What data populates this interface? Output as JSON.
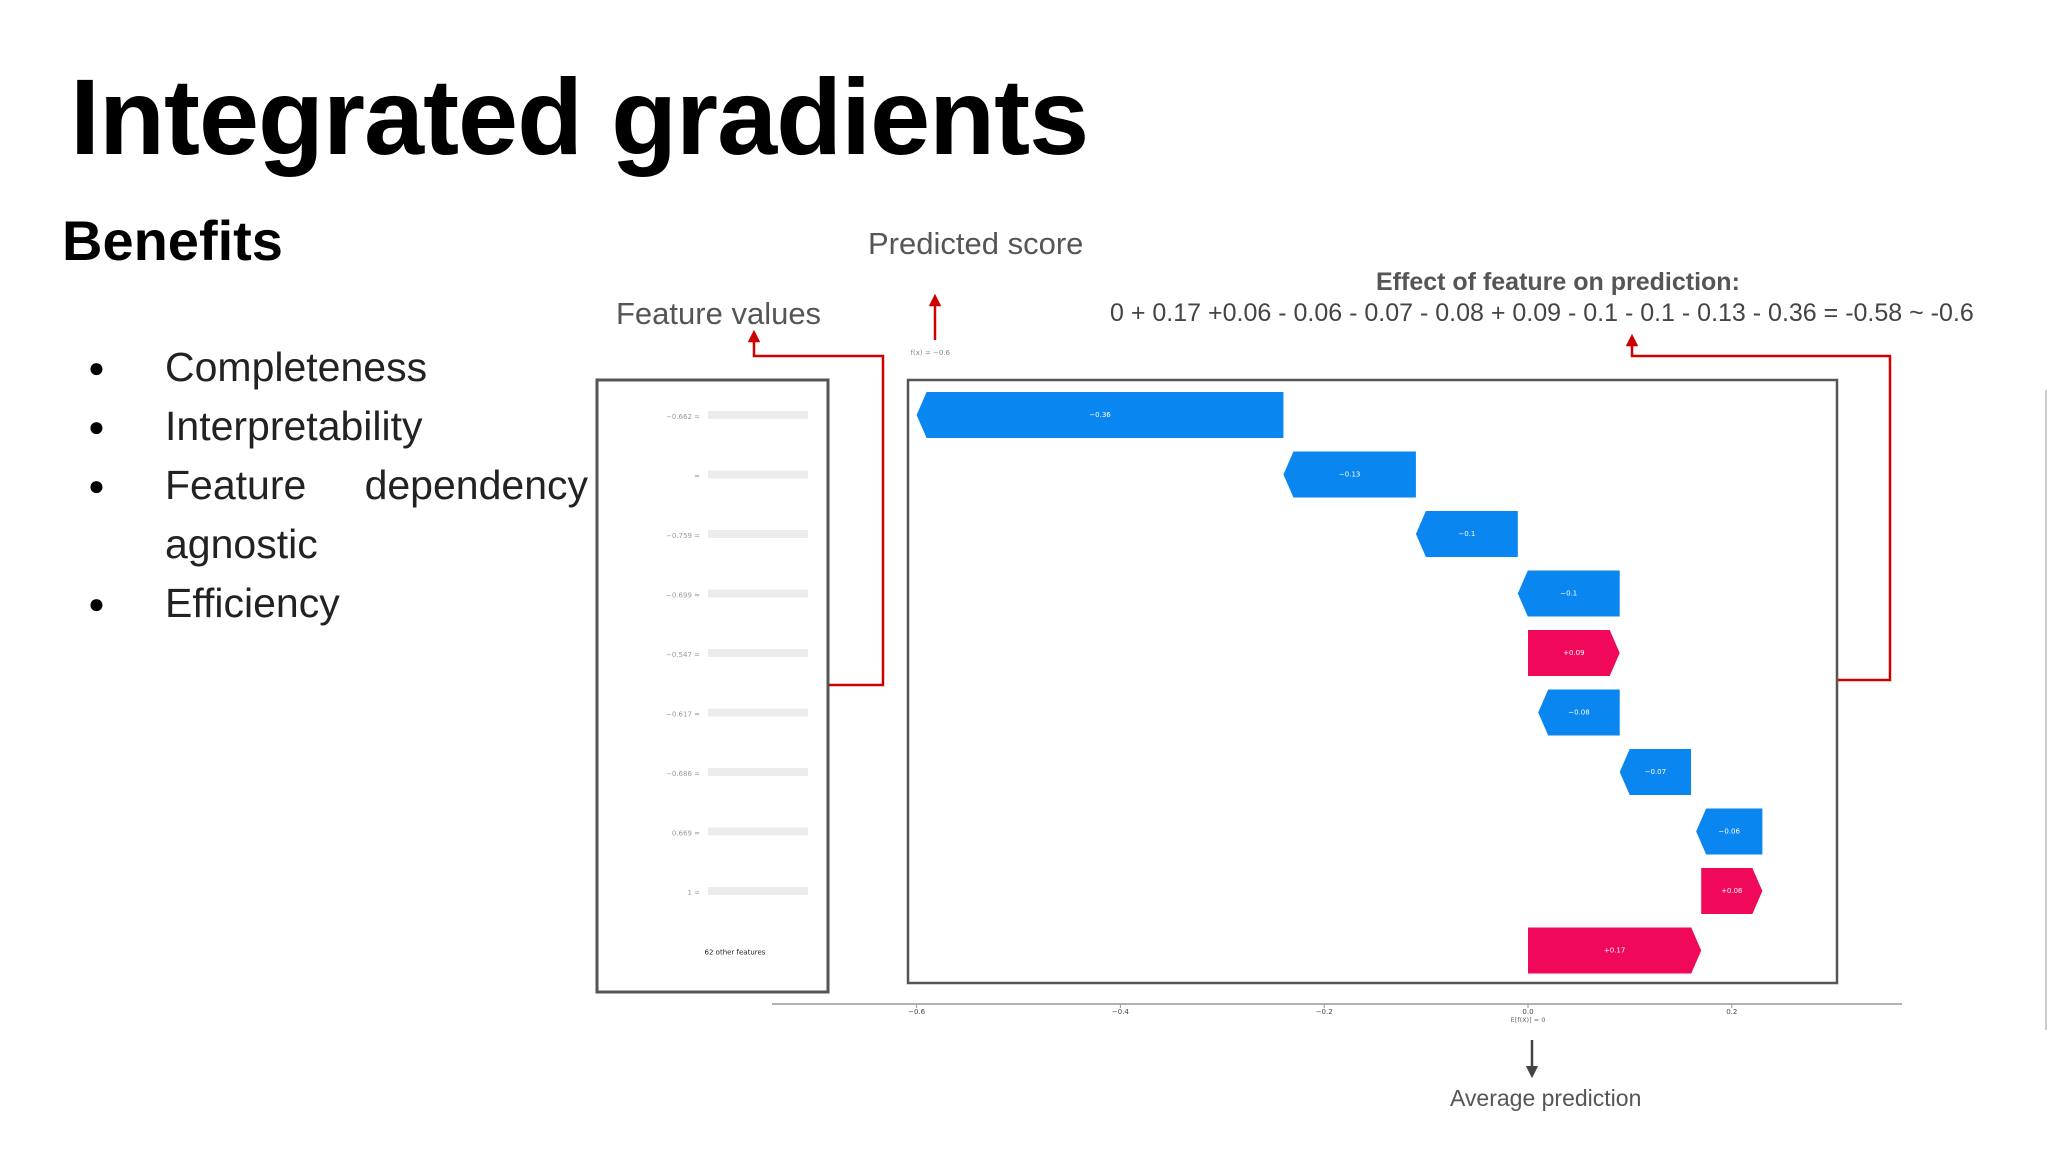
{
  "slide": {
    "title": "Integrated gradients",
    "subtitle": "Benefits",
    "bullets": [
      "Completeness",
      "Interpretability",
      "Feature dependency agnostic",
      "Efficiency"
    ]
  },
  "annotations": {
    "feature_values": "Feature values",
    "predicted_score": "Predicted score",
    "effect_title": "Effect of feature on prediction:",
    "effect_formula": "0 + 0.17 +0.06 - 0.06 - 0.07 - 0.08 + 0.09 - 0.1 - 0.1 - 0.13 - 0.36 = -0.58 ~ -0.6",
    "average_prediction": "Average prediction"
  },
  "colors": {
    "negative": "#0a86f0",
    "positive": "#f0085a",
    "arrow": "#d00000"
  },
  "chart_data": {
    "type": "waterfall",
    "fx_label": "f(x) = −0.6",
    "base_label": "E[f(X)] = 0",
    "base_value": 0,
    "final_value": -0.6,
    "xlim": [
      -0.6,
      0.2
    ],
    "xticks": [
      {
        "v": -0.6,
        "t": "−0.6"
      },
      {
        "v": -0.4,
        "t": "−0.4"
      },
      {
        "v": -0.2,
        "t": "−0.2"
      },
      {
        "v": 0.0,
        "t": "0.0"
      },
      {
        "v": 0.2,
        "t": "0.2"
      }
    ],
    "feature_labels": [
      "−0.662 =",
      "=",
      "−0.759 =",
      "−0.699 =",
      "−0.547 =",
      "−0.617 =",
      "−0.686 =",
      "0.669 =",
      "1 =",
      "62 other features"
    ],
    "bars": [
      {
        "start": -0.24,
        "end": -0.6,
        "value": -0.36,
        "label": "−0.36"
      },
      {
        "start": -0.11,
        "end": -0.24,
        "value": -0.13,
        "label": "−0.13"
      },
      {
        "start": -0.01,
        "end": -0.11,
        "value": -0.1,
        "label": "−0.1"
      },
      {
        "start": 0.09,
        "end": -0.01,
        "value": -0.1,
        "label": "−0.1"
      },
      {
        "start": 0.0,
        "end": 0.09,
        "value": 0.09,
        "label": "+0.09"
      },
      {
        "start": 0.09,
        "end": 0.01,
        "value": -0.08,
        "label": "−0.08"
      },
      {
        "start": 0.16,
        "end": 0.09,
        "value": -0.07,
        "label": "−0.07"
      },
      {
        "start": 0.23,
        "end": 0.165,
        "value": -0.06,
        "label": "−0.06"
      },
      {
        "start": 0.17,
        "end": 0.23,
        "value": 0.06,
        "label": "+0.06"
      },
      {
        "start": 0.0,
        "end": 0.17,
        "value": 0.17,
        "label": "+0.17"
      }
    ]
  }
}
